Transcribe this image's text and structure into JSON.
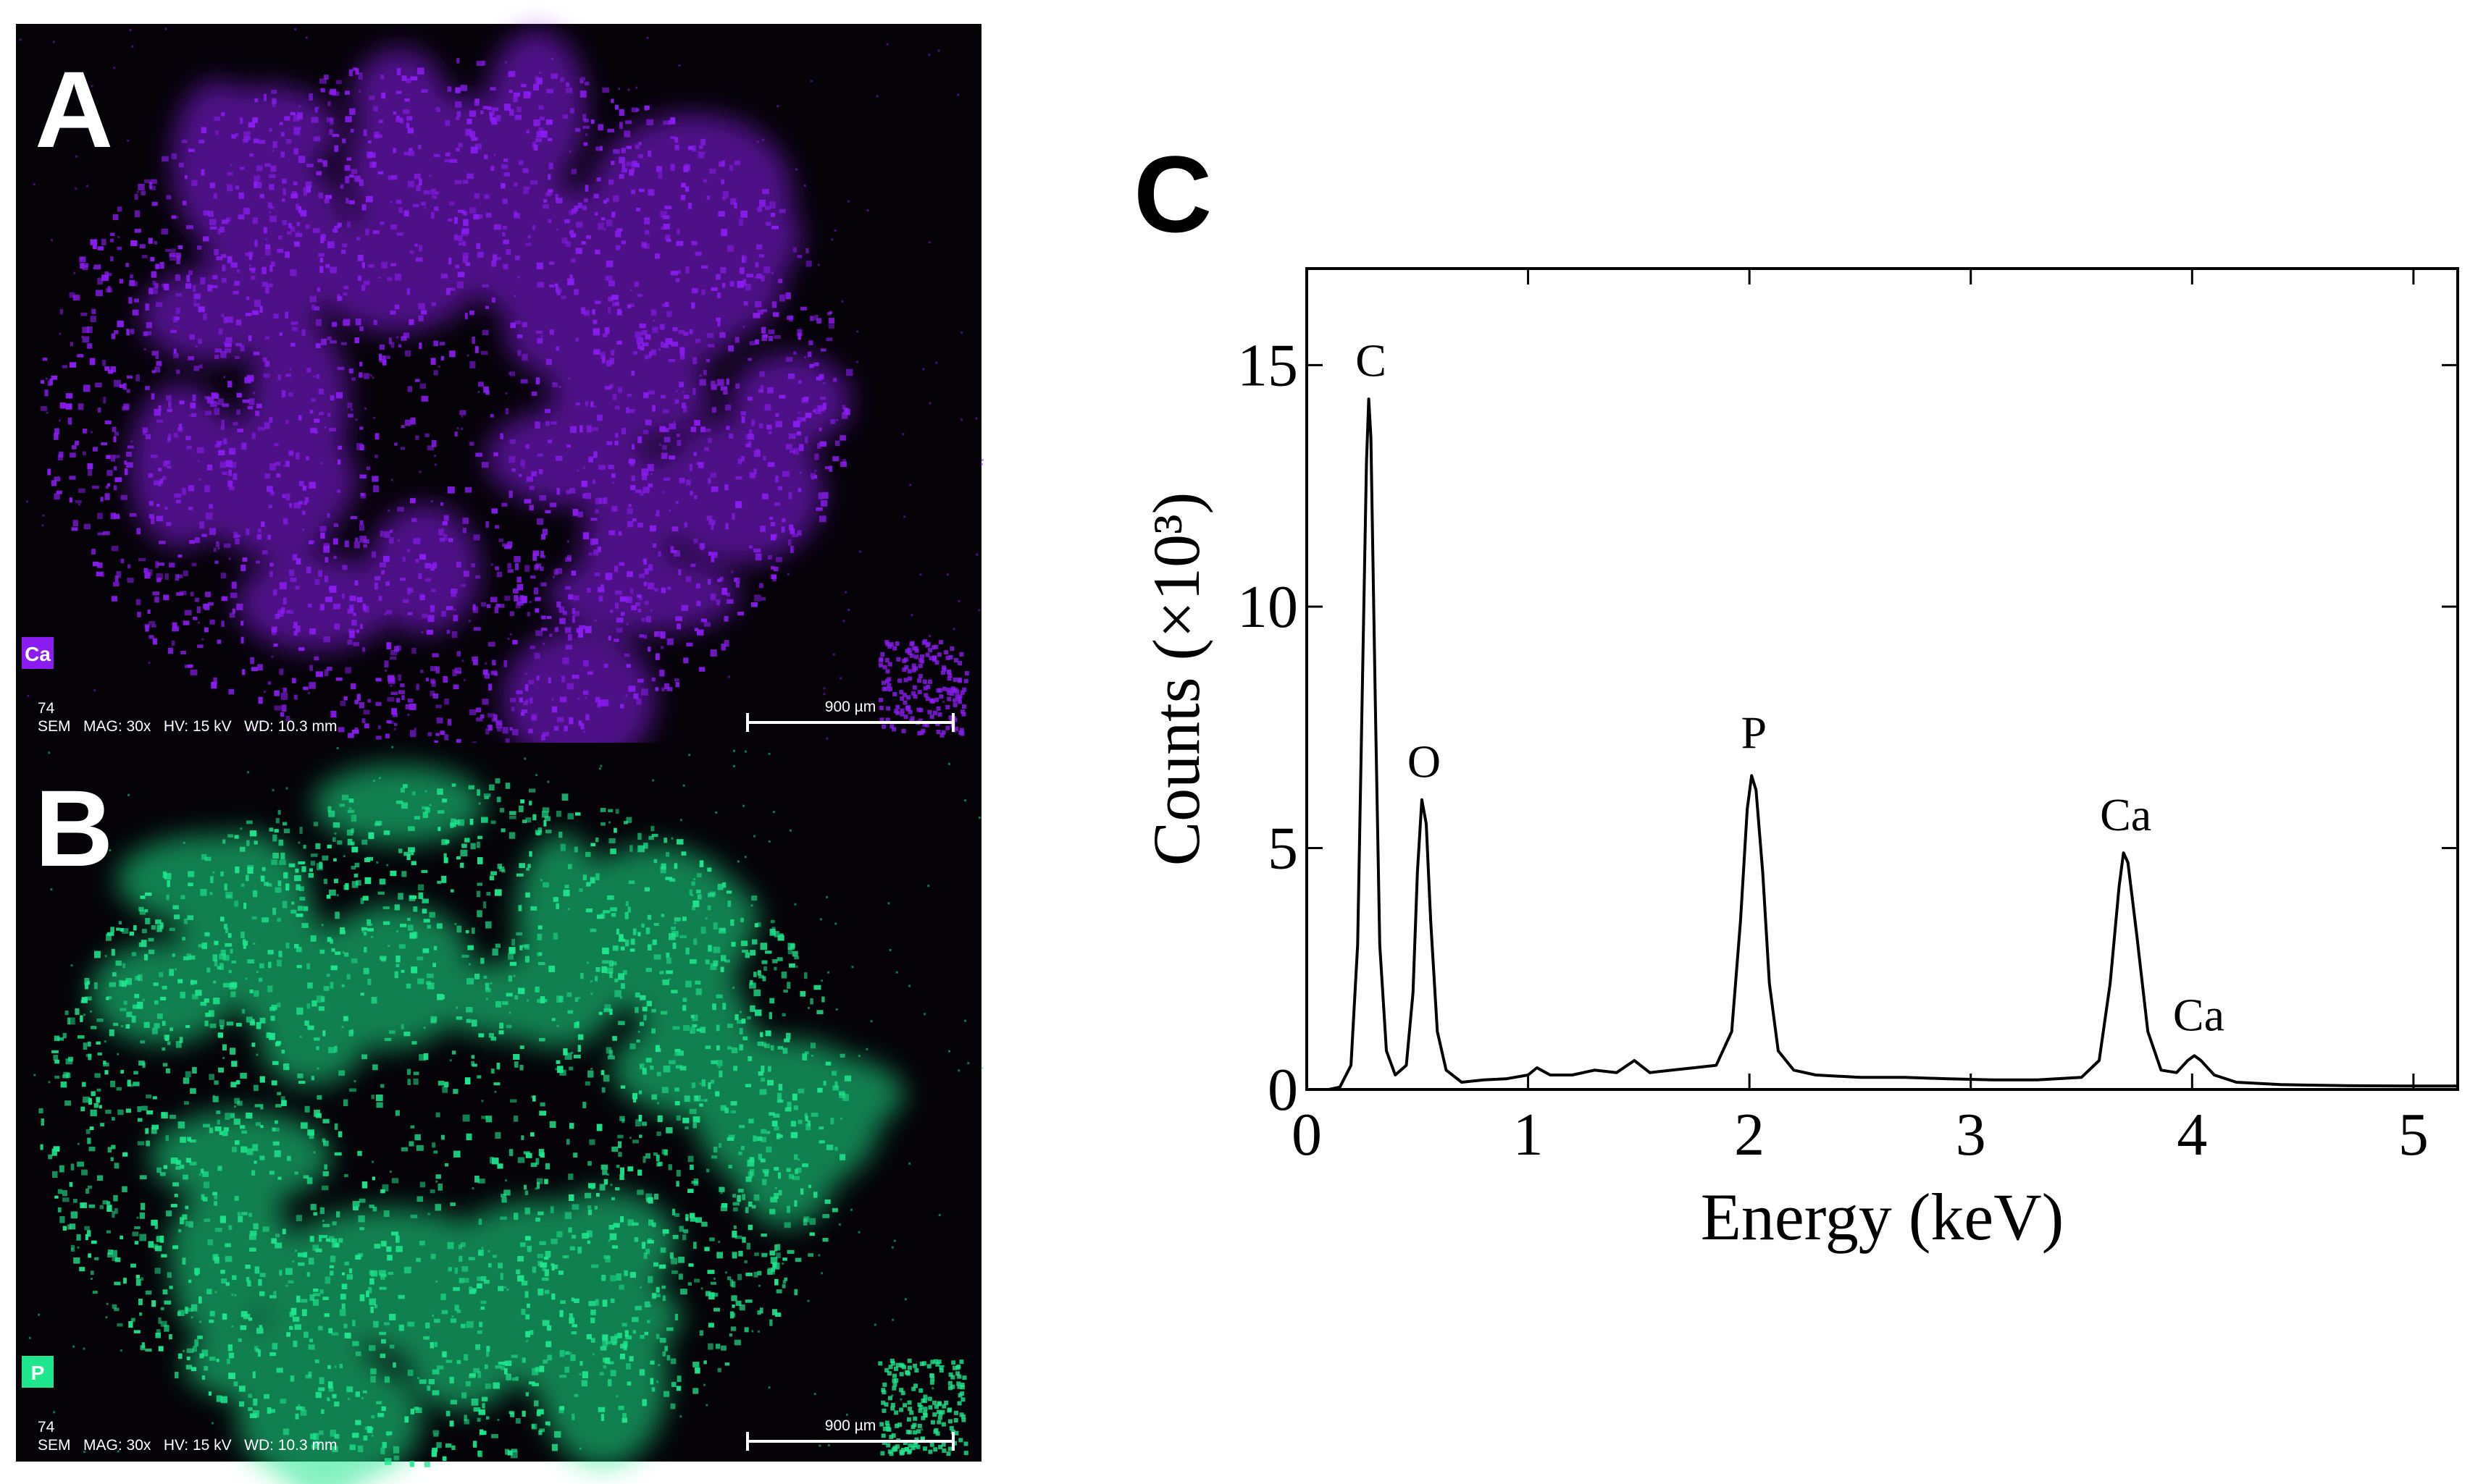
{
  "panels": [
    {
      "letter": "A",
      "element": "Ca",
      "color": "#8a1cf0",
      "id_text": "74",
      "info": "SEM   MAG: 30x   HV: 15 kV   WD: 10.3 mm",
      "scale": "900 µm"
    },
    {
      "letter": "B",
      "element": "P",
      "color": "#1ee68c",
      "id_text": "74",
      "info": "SEM   MAG: 30x   HV: 15 kV   WD: 10.3 mm",
      "scale": "900 µm"
    }
  ],
  "chart_data": {
    "type": "line",
    "panel_letter": "C",
    "x_label": "Energy (keV)",
    "y_label": "Counts (×10³)",
    "color": "#000000",
    "xlim": [
      0,
      5.2
    ],
    "xticks": [
      0,
      1,
      2,
      3,
      4,
      5
    ],
    "ylim": [
      0,
      17
    ],
    "yticks": [
      0,
      5,
      10,
      15
    ],
    "x": [
      0.0,
      0.1,
      0.15,
      0.2,
      0.23,
      0.25,
      0.27,
      0.28,
      0.29,
      0.31,
      0.33,
      0.36,
      0.4,
      0.45,
      0.48,
      0.5,
      0.52,
      0.54,
      0.56,
      0.59,
      0.63,
      0.7,
      0.8,
      0.9,
      1.0,
      1.04,
      1.1,
      1.2,
      1.3,
      1.4,
      1.48,
      1.55,
      1.65,
      1.75,
      1.85,
      1.92,
      1.96,
      1.99,
      2.01,
      2.03,
      2.06,
      2.09,
      2.13,
      2.2,
      2.3,
      2.5,
      2.7,
      2.9,
      3.1,
      3.3,
      3.5,
      3.58,
      3.63,
      3.67,
      3.69,
      3.71,
      3.75,
      3.8,
      3.86,
      3.93,
      3.98,
      4.01,
      4.04,
      4.1,
      4.2,
      4.4,
      4.7,
      5.0,
      5.2
    ],
    "values": [
      0,
      0,
      0.05,
      0.5,
      3,
      8,
      13,
      14.3,
      13.5,
      8,
      3,
      0.8,
      0.3,
      0.5,
      2,
      4.5,
      6.0,
      5.5,
      3.5,
      1.2,
      0.4,
      0.15,
      0.2,
      0.22,
      0.3,
      0.45,
      0.3,
      0.3,
      0.4,
      0.35,
      0.6,
      0.35,
      0.4,
      0.45,
      0.5,
      1.2,
      3.5,
      5.8,
      6.5,
      6.2,
      4.5,
      2.2,
      0.8,
      0.4,
      0.3,
      0.25,
      0.25,
      0.22,
      0.2,
      0.2,
      0.25,
      0.6,
      2.2,
      4.2,
      4.9,
      4.7,
      3.2,
      1.2,
      0.4,
      0.35,
      0.6,
      0.7,
      0.6,
      0.3,
      0.15,
      0.1,
      0.08,
      0.07,
      0.07
    ],
    "annotations": [
      {
        "text": "C",
        "x": 0.29,
        "y": 15.1
      },
      {
        "text": "O",
        "x": 0.53,
        "y": 6.8
      },
      {
        "text": "P",
        "x": 2.02,
        "y": 7.4
      },
      {
        "text": "Ca",
        "x": 3.7,
        "y": 5.7
      },
      {
        "text": "Ca",
        "x": 4.03,
        "y": 1.55
      }
    ]
  }
}
